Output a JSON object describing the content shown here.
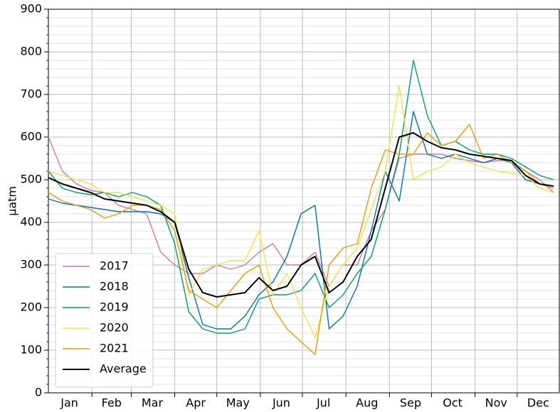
{
  "chart_data": {
    "type": "line",
    "y_label": "µatm",
    "x": [
      1,
      11,
      21,
      31,
      41,
      51,
      61,
      71,
      81,
      91,
      101,
      111,
      121,
      131,
      141,
      151,
      161,
      171,
      181,
      191,
      201,
      211,
      221,
      231,
      241,
      251,
      261,
      271,
      281,
      291,
      301,
      311,
      321,
      331,
      341,
      351,
      361
    ],
    "xlim": [
      1,
      365
    ],
    "xticks": [
      {
        "value": 16,
        "label": "Jan"
      },
      {
        "value": 46,
        "label": "Feb"
      },
      {
        "value": 75,
        "label": "Mar"
      },
      {
        "value": 106,
        "label": "Apr"
      },
      {
        "value": 136,
        "label": "May"
      },
      {
        "value": 167,
        "label": "Jun"
      },
      {
        "value": 197,
        "label": "Jul"
      },
      {
        "value": 228,
        "label": "Aug"
      },
      {
        "value": 259,
        "label": "Sep"
      },
      {
        "value": 289,
        "label": "Oct"
      },
      {
        "value": 320,
        "label": "Nov"
      },
      {
        "value": 350,
        "label": "Dec"
      }
    ],
    "x_grid": [
      32,
      60,
      91,
      121,
      152,
      182,
      213,
      244,
      274,
      305,
      335
    ],
    "ylim": [
      0,
      900
    ],
    "yticks": [
      0,
      100,
      200,
      300,
      400,
      500,
      600,
      700,
      800,
      900
    ],
    "y_minor_grid": [
      20,
      40,
      60,
      80,
      120,
      140,
      160,
      180,
      220,
      240,
      260,
      280,
      320,
      340,
      360,
      380,
      420,
      440,
      460,
      480,
      520,
      540,
      560,
      580,
      620,
      640,
      660,
      680,
      720,
      740,
      760,
      780,
      820,
      840,
      860,
      880
    ],
    "grid": true,
    "legend": "lower left",
    "series": [
      {
        "name": "2017",
        "color": "#cc79a7",
        "values": [
          600,
          520,
          490,
          475,
          470,
          440,
          430,
          420,
          330,
          300,
          280,
          280,
          300,
          290,
          300,
          330,
          350,
          300,
          300,
          330,
          250,
          300,
          300,
          380,
          430,
          550,
          560,
          560,
          560,
          550,
          545,
          540,
          545,
          545,
          520,
          500,
          470
        ]
      },
      {
        "name": "2018",
        "color": "#0072b2",
        "values": [
          455,
          445,
          440,
          435,
          430,
          425,
          425,
          425,
          420,
          400,
          270,
          160,
          150,
          150,
          180,
          230,
          260,
          320,
          420,
          440,
          150,
          180,
          250,
          380,
          520,
          450,
          660,
          560,
          550,
          560,
          550,
          540,
          550,
          540,
          500,
          490,
          480
        ]
      },
      {
        "name": "2019",
        "color": "#009e73",
        "values": [
          520,
          480,
          470,
          465,
          470,
          460,
          470,
          460,
          440,
          350,
          190,
          150,
          140,
          140,
          150,
          220,
          230,
          230,
          240,
          280,
          200,
          230,
          280,
          320,
          430,
          560,
          780,
          650,
          580,
          590,
          570,
          560,
          560,
          550,
          530,
          510,
          500
        ]
      },
      {
        "name": "2020",
        "color": "#f0e442",
        "values": [
          520,
          510,
          500,
          490,
          470,
          470,
          460,
          450,
          440,
          420,
          230,
          290,
          300,
          310,
          310,
          380,
          230,
          280,
          200,
          130,
          250,
          300,
          340,
          430,
          520,
          720,
          500,
          520,
          530,
          560,
          540,
          530,
          520,
          515,
          510,
          480,
          470
        ]
      },
      {
        "name": "2021",
        "color": "#e69f00",
        "values": [
          470,
          450,
          440,
          430,
          410,
          420,
          440,
          440,
          430,
          380,
          240,
          220,
          200,
          240,
          280,
          300,
          200,
          150,
          120,
          90,
          300,
          340,
          350,
          480,
          570,
          560,
          560,
          610,
          580,
          590,
          630,
          550,
          560,
          540,
          520,
          490,
          480
        ]
      },
      {
        "name": "Average",
        "color": "#000000",
        "values": [
          505,
          490,
          480,
          470,
          455,
          450,
          445,
          440,
          425,
          400,
          290,
          235,
          225,
          230,
          235,
          270,
          240,
          250,
          300,
          320,
          235,
          260,
          320,
          360,
          480,
          600,
          610,
          590,
          575,
          570,
          560,
          555,
          550,
          545,
          510,
          490,
          485
        ]
      }
    ]
  }
}
